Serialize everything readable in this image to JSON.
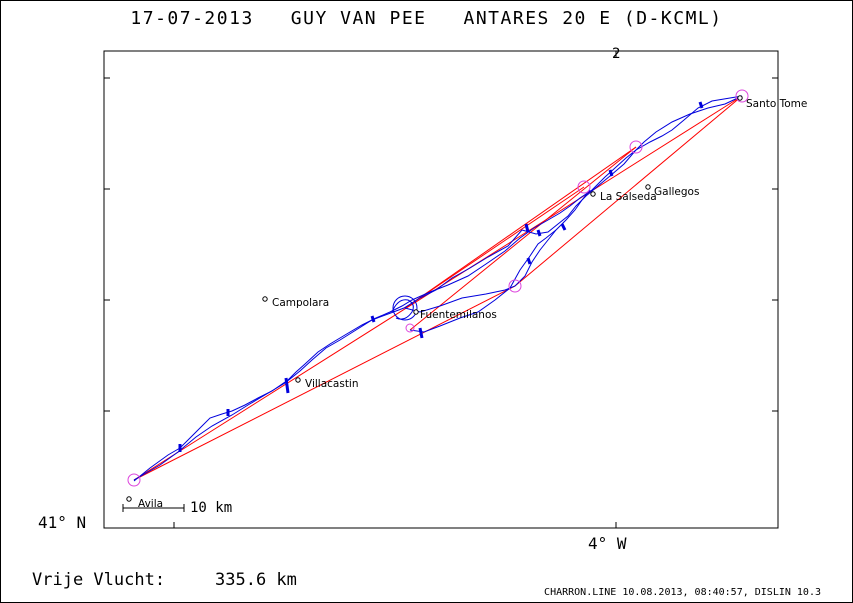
{
  "title": "17-07-2013   GUY VAN PEE   ANTARES 20 E (D-KCML)",
  "axes": {
    "lat_label": "41° N",
    "lon_label": "4° W"
  },
  "flight": {
    "label": "Vrije Vlucht:",
    "value": "335.6 km"
  },
  "footer": "CHARRON.LINE 10.08.2013, 08:40:57, DISLIN 10.3",
  "scale": {
    "label": "10 km"
  },
  "places": [
    {
      "name": "Santo Tome"
    },
    {
      "name": "Gallegos"
    },
    {
      "name": "La Salseda"
    },
    {
      "name": "Campolara"
    },
    {
      "name": "Fuentemilanos"
    },
    {
      "name": "Villacastin"
    },
    {
      "name": "Avila"
    }
  ],
  "colors": {
    "track": "#0000dd",
    "task": "#ff0000",
    "turnpoint": "#dd44dd",
    "frame": "#000000"
  }
}
